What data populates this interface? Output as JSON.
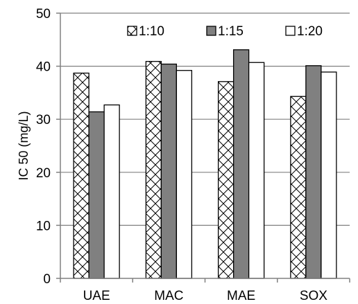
{
  "chart_data": {
    "type": "bar",
    "title": "",
    "xlabel": "",
    "ylabel": "IC 50 (mg/L)",
    "categories": [
      "UAE",
      "MAC",
      "MAE",
      "SOX"
    ],
    "ylim": [
      0,
      50
    ],
    "yticks": [
      0,
      10,
      20,
      30,
      40,
      50
    ],
    "grid": "horizontal",
    "legend_position": "top",
    "series": [
      {
        "name": "1:10",
        "values": [
          38.7,
          40.9,
          37.1,
          34.3
        ],
        "fill": "hatch-crosshatch",
        "color": "#ffffff",
        "stroke": "#000000"
      },
      {
        "name": "1:15",
        "values": [
          31.4,
          40.4,
          43.1,
          40.1
        ],
        "fill": "solid",
        "color": "#808080",
        "stroke": "#000000"
      },
      {
        "name": "1:20",
        "values": [
          32.7,
          39.2,
          40.7,
          38.9
        ],
        "fill": "solid",
        "color": "#ffffff",
        "stroke": "#000000"
      }
    ]
  }
}
